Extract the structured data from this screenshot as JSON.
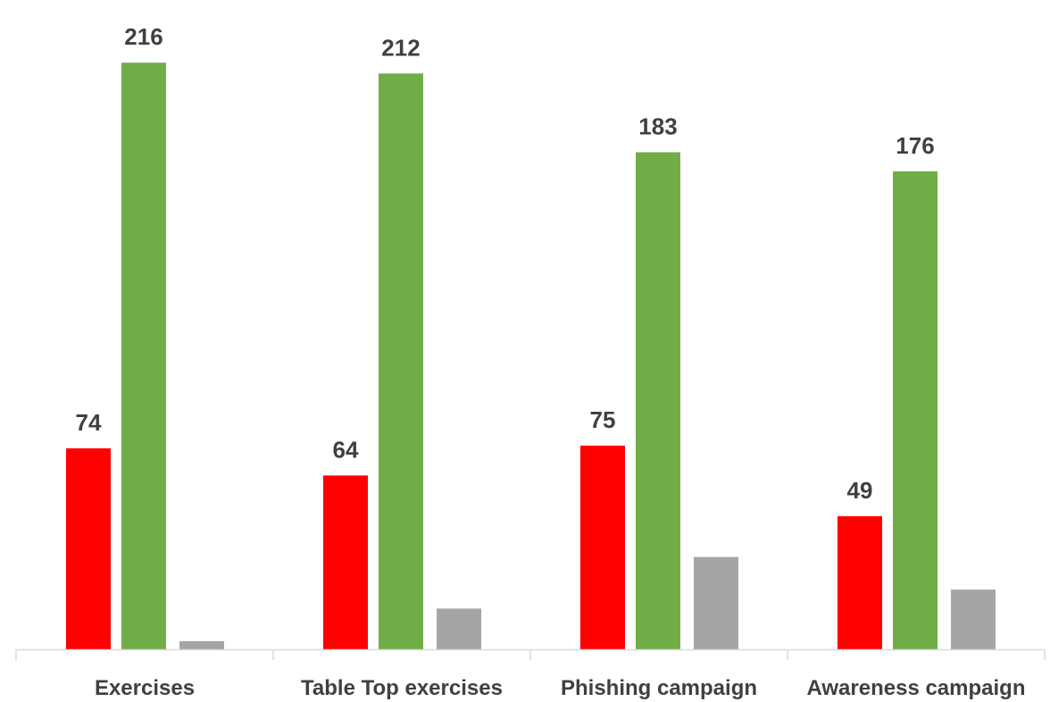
{
  "chart_data": {
    "type": "bar",
    "title": "",
    "xlabel": "",
    "ylabel": "",
    "categories": [
      "Exercises",
      "Table Top exercises",
      "Phishing campaign",
      "Awareness campaign"
    ],
    "series": [
      {
        "color": "#ff0000",
        "values": [
          74,
          64,
          75,
          49
        ],
        "labels": [
          "74",
          "64",
          "75",
          "49"
        ]
      },
      {
        "color": "#70ad47",
        "values": [
          216,
          212,
          183,
          176
        ],
        "labels": [
          "216",
          "212",
          "183",
          "176"
        ]
      },
      {
        "color": "#a5a5a5",
        "values": [
          3,
          15,
          34,
          22
        ],
        "labels": []
      }
    ],
    "ylim": [
      0,
      220
    ],
    "grid": false,
    "legend": "none",
    "axis_color": "#d9d9d9"
  }
}
